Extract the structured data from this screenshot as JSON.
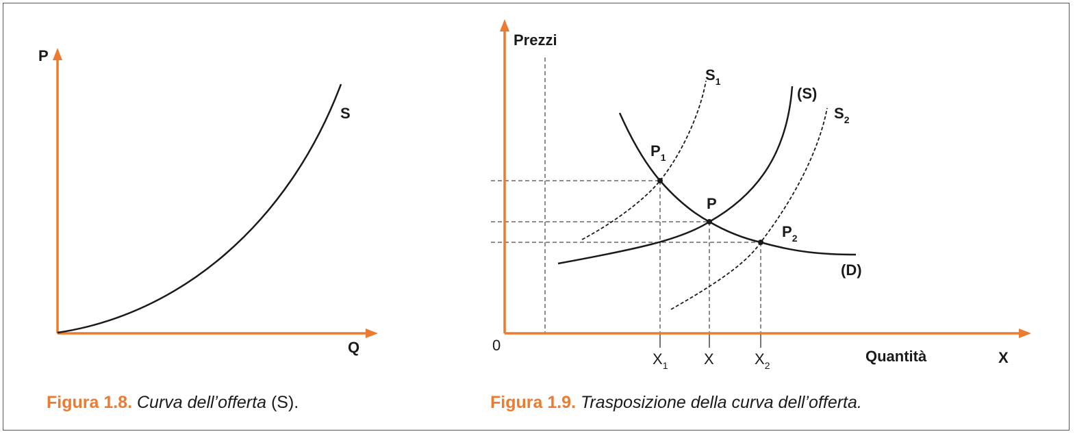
{
  "colors": {
    "axis": "#ec7a2f",
    "curve": "#1a1a1a",
    "caption_num": "#ec7a2f",
    "border": "#555555"
  },
  "fig8": {
    "y_axis": "P",
    "x_axis": "Q",
    "curve_label": "S",
    "caption_num": "Figura 1.8.",
    "caption_text": "Curva dell’offerta",
    "caption_suffix": "(S)."
  },
  "fig9": {
    "y_axis": "Prezzi",
    "x_axis_word": "Quantità",
    "x_axis_letter": "X",
    "origin": "0",
    "curves": {
      "s1": "S",
      "s1_sub": "1",
      "s": "(S)",
      "s2": "S",
      "s2_sub": "2",
      "d": "(D)"
    },
    "points": {
      "p1": "P",
      "p1_sub": "1",
      "p": "P",
      "p2": "P",
      "p2_sub": "2"
    },
    "ticks": {
      "x1": "X",
      "x1_sub": "1",
      "x": "X",
      "x2": "X",
      "x2_sub": "2"
    },
    "caption_num": "Figura 1.9.",
    "caption_text": "Trasposizione della curva dell’offerta."
  }
}
